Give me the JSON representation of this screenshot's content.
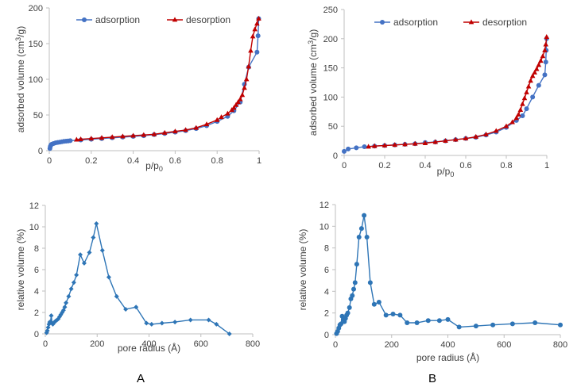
{
  "panel_labels": [
    "A",
    "B"
  ],
  "chart_data": [
    {
      "id": "A-isotherm",
      "type": "line",
      "xlabel": "p/p",
      "xlabel_sub": "0",
      "ylabel": "adsorbed volume (cm",
      "ylabel_sup": "3",
      "ylabel_end": "/g)",
      "xlim": [
        0,
        1
      ],
      "ylim": [
        0,
        200
      ],
      "x_ticks": [
        "0",
        "0.2",
        "0.4",
        "0.6",
        "0.8",
        "1"
      ],
      "y_ticks": [
        "0",
        "50",
        "100",
        "150",
        "200"
      ],
      "legend_position": "top",
      "series": [
        {
          "name": "adsorption",
          "color": "#4472c4",
          "marker": "circle",
          "points": [
            [
              0.003,
              3
            ],
            [
              0.005,
              6
            ],
            [
              0.008,
              8
            ],
            [
              0.012,
              9
            ],
            [
              0.02,
              10
            ],
            [
              0.03,
              11
            ],
            [
              0.04,
              11.5
            ],
            [
              0.05,
              12
            ],
            [
              0.06,
              12.5
            ],
            [
              0.07,
              13
            ],
            [
              0.08,
              13.3
            ],
            [
              0.09,
              13.6
            ],
            [
              0.1,
              14
            ],
            [
              0.15,
              15
            ],
            [
              0.2,
              16
            ],
            [
              0.25,
              17
            ],
            [
              0.3,
              18
            ],
            [
              0.35,
              19
            ],
            [
              0.4,
              20
            ],
            [
              0.45,
              21
            ],
            [
              0.5,
              22.5
            ],
            [
              0.55,
              24
            ],
            [
              0.6,
              26
            ],
            [
              0.65,
              28
            ],
            [
              0.7,
              31
            ],
            [
              0.75,
              35
            ],
            [
              0.8,
              41
            ],
            [
              0.85,
              48
            ],
            [
              0.88,
              56
            ],
            [
              0.91,
              68
            ],
            [
              0.93,
              93
            ],
            [
              0.95,
              117
            ],
            [
              0.99,
              138
            ],
            [
              0.995,
              161
            ],
            [
              0.998,
              185
            ]
          ]
        },
        {
          "name": "desorption",
          "color": "#c00000",
          "marker": "triangle",
          "points": [
            [
              0.998,
              185
            ],
            [
              0.99,
              178
            ],
            [
              0.98,
              170
            ],
            [
              0.97,
              160
            ],
            [
              0.96,
              140
            ],
            [
              0.95,
              118
            ],
            [
              0.94,
              100
            ],
            [
              0.93,
              88
            ],
            [
              0.92,
              78
            ],
            [
              0.91,
              72
            ],
            [
              0.9,
              68
            ],
            [
              0.89,
              64
            ],
            [
              0.88,
              60
            ],
            [
              0.87,
              57
            ],
            [
              0.85,
              52
            ],
            [
              0.82,
              47
            ],
            [
              0.8,
              43
            ],
            [
              0.75,
              37
            ],
            [
              0.7,
              32
            ],
            [
              0.65,
              29
            ],
            [
              0.6,
              27
            ],
            [
              0.55,
              25
            ],
            [
              0.5,
              23
            ],
            [
              0.45,
              22
            ],
            [
              0.4,
              21
            ],
            [
              0.35,
              20
            ],
            [
              0.3,
              19
            ],
            [
              0.25,
              18
            ],
            [
              0.2,
              17
            ],
            [
              0.15,
              16
            ],
            [
              0.13,
              15.5
            ]
          ]
        }
      ]
    },
    {
      "id": "B-isotherm",
      "type": "line",
      "xlabel": "p/p",
      "xlabel_sub": "0",
      "ylabel": "adsorbed volume (cm",
      "ylabel_sup": "3",
      "ylabel_end": "/g)",
      "xlim": [
        0,
        1
      ],
      "ylim": [
        0,
        250
      ],
      "x_ticks": [
        "0",
        "0.2",
        "0.4",
        "0.6",
        "0.8",
        "1"
      ],
      "y_ticks": [
        "0",
        "50",
        "100",
        "150",
        "200",
        "250"
      ],
      "legend_position": "top",
      "series": [
        {
          "name": "adsorption",
          "color": "#4472c4",
          "marker": "circle",
          "points": [
            [
              0.0,
              7
            ],
            [
              0.02,
              11
            ],
            [
              0.06,
              13
            ],
            [
              0.1,
              15
            ],
            [
              0.15,
              16
            ],
            [
              0.2,
              17
            ],
            [
              0.25,
              18
            ],
            [
              0.3,
              19
            ],
            [
              0.35,
              20
            ],
            [
              0.4,
              22
            ],
            [
              0.45,
              23
            ],
            [
              0.5,
              25
            ],
            [
              0.55,
              27
            ],
            [
              0.6,
              29
            ],
            [
              0.65,
              31
            ],
            [
              0.7,
              35
            ],
            [
              0.75,
              40
            ],
            [
              0.8,
              48
            ],
            [
              0.85,
              60
            ],
            [
              0.88,
              68
            ],
            [
              0.9,
              80
            ],
            [
              0.93,
              100
            ],
            [
              0.96,
              120
            ],
            [
              0.99,
              138
            ],
            [
              0.995,
              160
            ],
            [
              0.997,
              180
            ],
            [
              0.999,
              200
            ]
          ]
        },
        {
          "name": "desorption",
          "color": "#c00000",
          "marker": "triangle",
          "points": [
            [
              0.999,
              203
            ],
            [
              0.995,
              190
            ],
            [
              0.99,
              180
            ],
            [
              0.98,
              170
            ],
            [
              0.97,
              162
            ],
            [
              0.96,
              155
            ],
            [
              0.95,
              148
            ],
            [
              0.94,
              142
            ],
            [
              0.93,
              136
            ],
            [
              0.92,
              128
            ],
            [
              0.91,
              118
            ],
            [
              0.9,
              108
            ],
            [
              0.89,
              98
            ],
            [
              0.88,
              88
            ],
            [
              0.87,
              78
            ],
            [
              0.86,
              70
            ],
            [
              0.85,
              64
            ],
            [
              0.83,
              57
            ],
            [
              0.8,
              50
            ],
            [
              0.75,
              42
            ],
            [
              0.7,
              36
            ],
            [
              0.65,
              32
            ],
            [
              0.6,
              29
            ],
            [
              0.55,
              27
            ],
            [
              0.5,
              25
            ],
            [
              0.45,
              23
            ],
            [
              0.4,
              21
            ],
            [
              0.35,
              20
            ],
            [
              0.3,
              19
            ],
            [
              0.25,
              18
            ],
            [
              0.2,
              17
            ],
            [
              0.15,
              16
            ],
            [
              0.12,
              15
            ]
          ]
        }
      ]
    },
    {
      "id": "A-pore",
      "type": "line",
      "xlabel": "pore radius (Å)",
      "ylabel": "relative volume (%)",
      "xlim": [
        0,
        800
      ],
      "ylim": [
        0,
        12
      ],
      "x_ticks": [
        "0",
        "200",
        "400",
        "600",
        "800"
      ],
      "y_ticks": [
        "0",
        "2",
        "4",
        "6",
        "8",
        "10",
        "12"
      ],
      "series": [
        {
          "name": "",
          "color": "#2e75b6",
          "marker": "diamond",
          "points": [
            [
              5,
              0.1
            ],
            [
              8,
              0.3
            ],
            [
              11,
              0.6
            ],
            [
              14,
              0.9
            ],
            [
              17,
              1.1
            ],
            [
              20,
              1.1
            ],
            [
              23,
              1.7
            ],
            [
              26,
              1.0
            ],
            [
              29,
              0.9
            ],
            [
              32,
              1.0
            ],
            [
              35,
              1.1
            ],
            [
              40,
              1.2
            ],
            [
              45,
              1.3
            ],
            [
              50,
              1.4
            ],
            [
              55,
              1.6
            ],
            [
              60,
              1.8
            ],
            [
              65,
              2.0
            ],
            [
              70,
              2.2
            ],
            [
              75,
              2.5
            ],
            [
              80,
              2.9
            ],
            [
              90,
              3.5
            ],
            [
              100,
              4.2
            ],
            [
              110,
              4.8
            ],
            [
              120,
              5.5
            ],
            [
              135,
              7.4
            ],
            [
              150,
              6.6
            ],
            [
              170,
              7.6
            ],
            [
              185,
              9.0
            ],
            [
              197,
              10.3
            ],
            [
              220,
              7.8
            ],
            [
              245,
              5.3
            ],
            [
              275,
              3.5
            ],
            [
              310,
              2.3
            ],
            [
              350,
              2.5
            ],
            [
              390,
              1.0
            ],
            [
              410,
              0.9
            ],
            [
              450,
              1.0
            ],
            [
              500,
              1.1
            ],
            [
              560,
              1.3
            ],
            [
              630,
              1.3
            ],
            [
              660,
              0.9
            ],
            [
              710,
              0.0
            ]
          ]
        }
      ]
    },
    {
      "id": "B-pore",
      "type": "line",
      "xlabel": "pore radius (Å)",
      "ylabel": "relative volume (%)",
      "xlim": [
        0,
        800
      ],
      "ylim": [
        0,
        12
      ],
      "x_ticks": [
        "0",
        "200",
        "400",
        "600",
        "800"
      ],
      "y_ticks": [
        "0",
        "2",
        "4",
        "6",
        "8",
        "10",
        "12"
      ],
      "series": [
        {
          "name": "",
          "color": "#2e75b6",
          "marker": "circle",
          "points": [
            [
              4,
              0.1
            ],
            [
              8,
              0.3
            ],
            [
              12,
              0.6
            ],
            [
              16,
              0.9
            ],
            [
              20,
              1.0
            ],
            [
              24,
              1.7
            ],
            [
              28,
              1.4
            ],
            [
              32,
              1.2
            ],
            [
              36,
              1.5
            ],
            [
              40,
              1.8
            ],
            [
              44,
              2.0
            ],
            [
              50,
              2.5
            ],
            [
              55,
              3.3
            ],
            [
              60,
              3.6
            ],
            [
              65,
              4.2
            ],
            [
              70,
              4.8
            ],
            [
              76,
              6.5
            ],
            [
              84,
              9.0
            ],
            [
              93,
              9.8
            ],
            [
              102,
              11.0
            ],
            [
              112,
              9.0
            ],
            [
              124,
              4.8
            ],
            [
              138,
              2.8
            ],
            [
              155,
              3.0
            ],
            [
              180,
              1.8
            ],
            [
              205,
              1.9
            ],
            [
              230,
              1.8
            ],
            [
              255,
              1.1
            ],
            [
              290,
              1.1
            ],
            [
              330,
              1.3
            ],
            [
              370,
              1.3
            ],
            [
              400,
              1.4
            ],
            [
              440,
              0.7
            ],
            [
              500,
              0.8
            ],
            [
              560,
              0.9
            ],
            [
              630,
              1.0
            ],
            [
              710,
              1.1
            ],
            [
              800,
              0.9
            ]
          ]
        }
      ]
    }
  ]
}
